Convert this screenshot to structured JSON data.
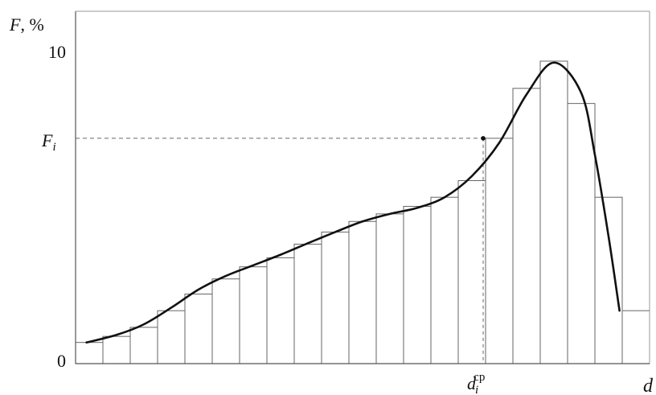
{
  "chart_data": {
    "type": "bar",
    "ylabel_var": "F",
    "ylabel_unit": ", %",
    "xlabel": "d",
    "yticks": [
      {
        "value": 0,
        "label": "0"
      },
      {
        "value": 10,
        "label": "10"
      }
    ],
    "ylim": [
      0,
      10.8
    ],
    "xlim": [
      0,
      20
    ],
    "grid": false,
    "legend": "none",
    "values": [
      0.7,
      0.9,
      1.2,
      1.75,
      2.3,
      2.8,
      3.2,
      3.5,
      3.95,
      4.35,
      4.7,
      4.95,
      5.2,
      5.5,
      6.05,
      7.45,
      9.1,
      10,
      8.6,
      5.5,
      1.75
    ],
    "curve": [
      {
        "x": 0.4,
        "y": 0.7
      },
      {
        "x": 1.5,
        "y": 0.95
      },
      {
        "x": 2.5,
        "y": 1.3
      },
      {
        "x": 3.5,
        "y": 1.85
      },
      {
        "x": 4.5,
        "y": 2.45
      },
      {
        "x": 5.5,
        "y": 2.9
      },
      {
        "x": 6.5,
        "y": 3.25
      },
      {
        "x": 7.5,
        "y": 3.6
      },
      {
        "x": 8.5,
        "y": 3.98
      },
      {
        "x": 9.5,
        "y": 4.35
      },
      {
        "x": 10.5,
        "y": 4.7
      },
      {
        "x": 11.5,
        "y": 4.95
      },
      {
        "x": 12.5,
        "y": 5.15
      },
      {
        "x": 13.5,
        "y": 5.5
      },
      {
        "x": 14.5,
        "y": 6.2
      },
      {
        "x": 15.5,
        "y": 7.3
      },
      {
        "x": 16.5,
        "y": 8.9
      },
      {
        "x": 17.5,
        "y": 9.95
      },
      {
        "x": 18.5,
        "y": 8.95
      },
      {
        "x": 19.0,
        "y": 6.9
      },
      {
        "x": 19.5,
        "y": 4.2
      },
      {
        "x": 19.9,
        "y": 1.75
      }
    ],
    "marker": {
      "x": 14.5,
      "y": 7.45,
      "y_label_var": "F",
      "y_label_sub": "i",
      "x_label_var": "d",
      "x_label_sub": "i",
      "x_label_sup": "cp"
    },
    "colors": {
      "bar_fill": "#ffffff",
      "bar_stroke": "#666666",
      "curve": "#111111",
      "axis": "#555555"
    }
  }
}
